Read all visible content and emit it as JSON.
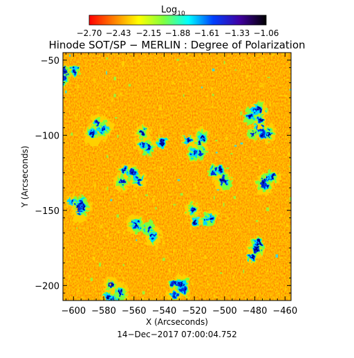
{
  "colorbar": {
    "label_main": "Log",
    "label_sub": "10",
    "tick_labels": [
      "−2.70",
      "−2.43",
      "−2.15",
      "−1.88",
      "−1.61",
      "−1.33",
      "−1.06"
    ],
    "values": [
      -2.7,
      -2.43,
      -2.15,
      -1.88,
      -1.61,
      -1.33,
      -1.06
    ],
    "colormap": [
      "#ff0000",
      "#ff8000",
      "#ffff00",
      "#80ff40",
      "#00ffff",
      "#0040ff",
      "#4000a0",
      "#000000"
    ]
  },
  "title": "Hinode SOT/SP − MERLIN : Degree of Polarization",
  "x_axis": {
    "label": "X (Arcseconds)",
    "ticks": [
      -600,
      -580,
      -560,
      -540,
      -520,
      -500,
      -480,
      -460
    ],
    "range": [
      -607,
      -456
    ]
  },
  "y_axis": {
    "label": "Y (Arcseconds)",
    "ticks": [
      -50,
      -100,
      -150,
      -200
    ],
    "range": [
      -210,
      -45
    ]
  },
  "timestamp": "14−Dec−2017 07:00:04.752",
  "map": {
    "background": "#ff4a00",
    "high_polarization_regions": [
      {
        "x": -475,
        "y": -100
      },
      {
        "x": -482,
        "y": -83
      },
      {
        "x": -548,
        "y": -105
      },
      {
        "x": -520,
        "y": -105
      },
      {
        "x": -515,
        "y": -152
      },
      {
        "x": -480,
        "y": -175
      },
      {
        "x": -553,
        "y": -165
      },
      {
        "x": -562,
        "y": -128
      },
      {
        "x": -605,
        "y": -58
      },
      {
        "x": -598,
        "y": -150
      },
      {
        "x": -530,
        "y": -200
      },
      {
        "x": -572,
        "y": -205
      },
      {
        "x": -470,
        "y": -130
      },
      {
        "x": -503,
        "y": -128
      },
      {
        "x": -585,
        "y": -95
      }
    ]
  }
}
